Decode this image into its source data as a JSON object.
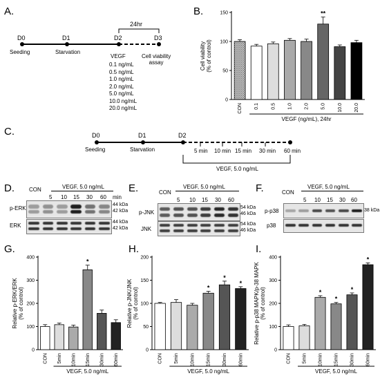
{
  "panels": {
    "a": "A.",
    "b": "B.",
    "c": "C.",
    "d": "D.",
    "e": "E.",
    "f": "F.",
    "g": "G.",
    "h": "H.",
    "i": "I."
  },
  "timeline_a": {
    "days": [
      "D0",
      "D1",
      "D2",
      "D3"
    ],
    "events": [
      "Seeding",
      "Starvation"
    ],
    "interval": "24hr",
    "treatment_title": "VEGF",
    "doses": [
      "0.1 ng/mL",
      "0.5 ng/mL",
      "1.0 ng/mL",
      "2.0 ng/mL",
      "5.0 ng/mL",
      "10.0 ng/mL",
      "20.0 ng/mL"
    ],
    "assay": [
      "Cell viability",
      "assay"
    ]
  },
  "timeline_c": {
    "days": [
      "D0",
      "D1",
      "D2"
    ],
    "events": [
      "Seeding",
      "Starvation"
    ],
    "times": [
      "5 min",
      "10 min",
      "15 min",
      "30 min",
      "60 min"
    ],
    "treatment": "VEGF, 5.0 ng/mL"
  },
  "blots": {
    "con": "CON",
    "treatment": "VEGF, 5.0 ng/mL",
    "times": [
      "5",
      "10",
      "15",
      "30",
      "60"
    ],
    "min": "min",
    "erk": {
      "phospho": "p-ERK",
      "total": "ERK",
      "sizes": [
        "44 kDa",
        "42 kDa"
      ]
    },
    "jnk": {
      "phospho": "p-JNK",
      "total": "JNK",
      "sizes": [
        "54 kDa",
        "46 kDa"
      ]
    },
    "p38": {
      "phospho": "p-p38",
      "total": "p38",
      "sizes": [
        "38 kDa"
      ]
    }
  },
  "chart_data": [
    {
      "panel": "B",
      "type": "bar",
      "ylabel": "Cell viability\n(% of control)",
      "xlabel": "VEGF (ng/mL), 24hr",
      "categories": [
        "CON",
        "0.1",
        "0.5",
        "1.0",
        "2.0",
        "5.0",
        "10.0",
        "20.0"
      ],
      "values": [
        100,
        92,
        96,
        102,
        100,
        130,
        91,
        98
      ],
      "errors": [
        3,
        3,
        3,
        3,
        4,
        12,
        3,
        4
      ],
      "significance": [
        "",
        "",
        "",
        "",
        "",
        "**",
        "",
        ""
      ],
      "colors": [
        "#bbbbbb",
        "#ffffff",
        "#dddddd",
        "#aaaaaa",
        "#888888",
        "#666666",
        "#444444",
        "#000000"
      ],
      "ylim": [
        0,
        150
      ],
      "yticks": [
        0,
        50,
        100,
        150
      ]
    },
    {
      "panel": "G",
      "type": "bar",
      "ylabel": "Relative p-ERK/ERK\n(% of control)",
      "xlabel": "VEGF, 5.0 ng/mL",
      "categories": [
        "CON",
        "5min",
        "10min",
        "15min",
        "30min",
        "60min"
      ],
      "values": [
        100,
        108,
        98,
        345,
        157,
        117
      ],
      "errors": [
        8,
        7,
        8,
        20,
        14,
        12
      ],
      "significance": [
        "",
        "",
        "",
        "*",
        "",
        ""
      ],
      "colors": [
        "#ffffff",
        "#dddddd",
        "#aaaaaa",
        "#888888",
        "#555555",
        "#222222"
      ],
      "ylim": [
        0,
        400
      ],
      "yticks": [
        0,
        100,
        200,
        300,
        400
      ]
    },
    {
      "panel": "H",
      "type": "bar",
      "ylabel": "Relative p-JNK/JNK\n(% of control)",
      "xlabel": "VEGF, 5.0 ng/mL",
      "categories": [
        "CON",
        "5min",
        "10min",
        "15min",
        "30min",
        "60min"
      ],
      "values": [
        100,
        102,
        96,
        122,
        140,
        132
      ],
      "errors": [
        2,
        6,
        4,
        4,
        8,
        4
      ],
      "significance": [
        "",
        "",
        "",
        "*",
        "*",
        "*"
      ],
      "colors": [
        "#ffffff",
        "#dddddd",
        "#aaaaaa",
        "#888888",
        "#555555",
        "#222222"
      ],
      "ylim": [
        0,
        200
      ],
      "yticks": [
        0,
        50,
        100,
        150,
        200
      ]
    },
    {
      "panel": "I",
      "type": "bar",
      "ylabel": "Relative p-p38 MAPK/p-38 MAPK\n(% of control)",
      "xlabel": "VEGF, 5.0 ng/mL",
      "categories": [
        "CON",
        "5min",
        "10min",
        "15min",
        "30min",
        "60min"
      ],
      "values": [
        100,
        103,
        226,
        198,
        237,
        367
      ],
      "errors": [
        7,
        6,
        7,
        6,
        8,
        8
      ],
      "significance": [
        "",
        "",
        "*",
        "*",
        "*",
        "*"
      ],
      "colors": [
        "#ffffff",
        "#dddddd",
        "#aaaaaa",
        "#888888",
        "#555555",
        "#222222"
      ],
      "ylim": [
        0,
        400
      ],
      "yticks": [
        0,
        100,
        200,
        300,
        400
      ]
    }
  ]
}
